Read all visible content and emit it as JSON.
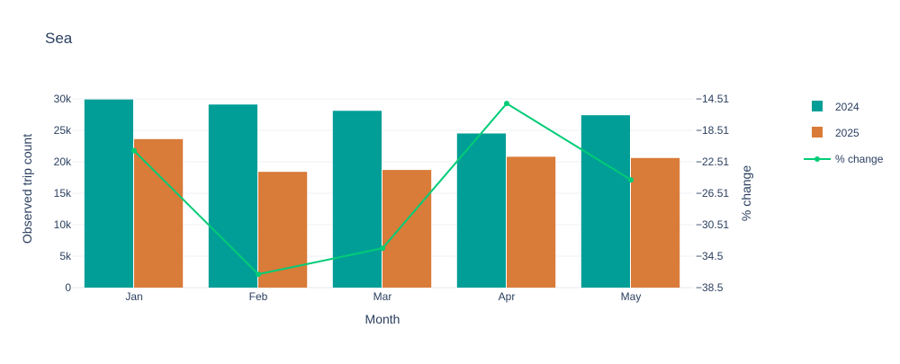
{
  "chart_data": {
    "type": "bar",
    "title": "Sea",
    "xlabel": "Month",
    "ylabel": "Observed trip count",
    "y2label": "% change",
    "categories": [
      "Jan",
      "Feb",
      "Mar",
      "Apr",
      "May"
    ],
    "ylim": [
      0,
      30000
    ],
    "y_ticks": [
      0,
      5000,
      10000,
      15000,
      20000,
      25000,
      30000
    ],
    "y_tick_labels": [
      "0",
      "5k",
      "10k",
      "15k",
      "20k",
      "25k",
      "30k"
    ],
    "y2lim": [
      -38.5,
      -14.51
    ],
    "y2_ticks": [
      -38.5,
      -34.5,
      -30.51,
      -26.51,
      -22.51,
      -18.51,
      -14.51
    ],
    "y2_tick_labels": [
      "−38.5",
      "−34.5",
      "−30.51",
      "−26.51",
      "−22.51",
      "−18.51",
      "−14.51"
    ],
    "grid": true,
    "legend_position": "right",
    "series": [
      {
        "name": "2024",
        "type": "bar",
        "axis": "left",
        "color": "#009E96",
        "values": [
          29900,
          29100,
          28100,
          24500,
          27400
        ]
      },
      {
        "name": "2025",
        "type": "bar",
        "axis": "left",
        "color": "#D97B39",
        "values": [
          23600,
          18400,
          18700,
          20800,
          20600
        ]
      },
      {
        "name": "% change",
        "type": "line",
        "axis": "right",
        "color": "#00CC77",
        "values": [
          -21.1,
          -36.8,
          -33.5,
          -15.1,
          -24.8
        ]
      }
    ]
  }
}
